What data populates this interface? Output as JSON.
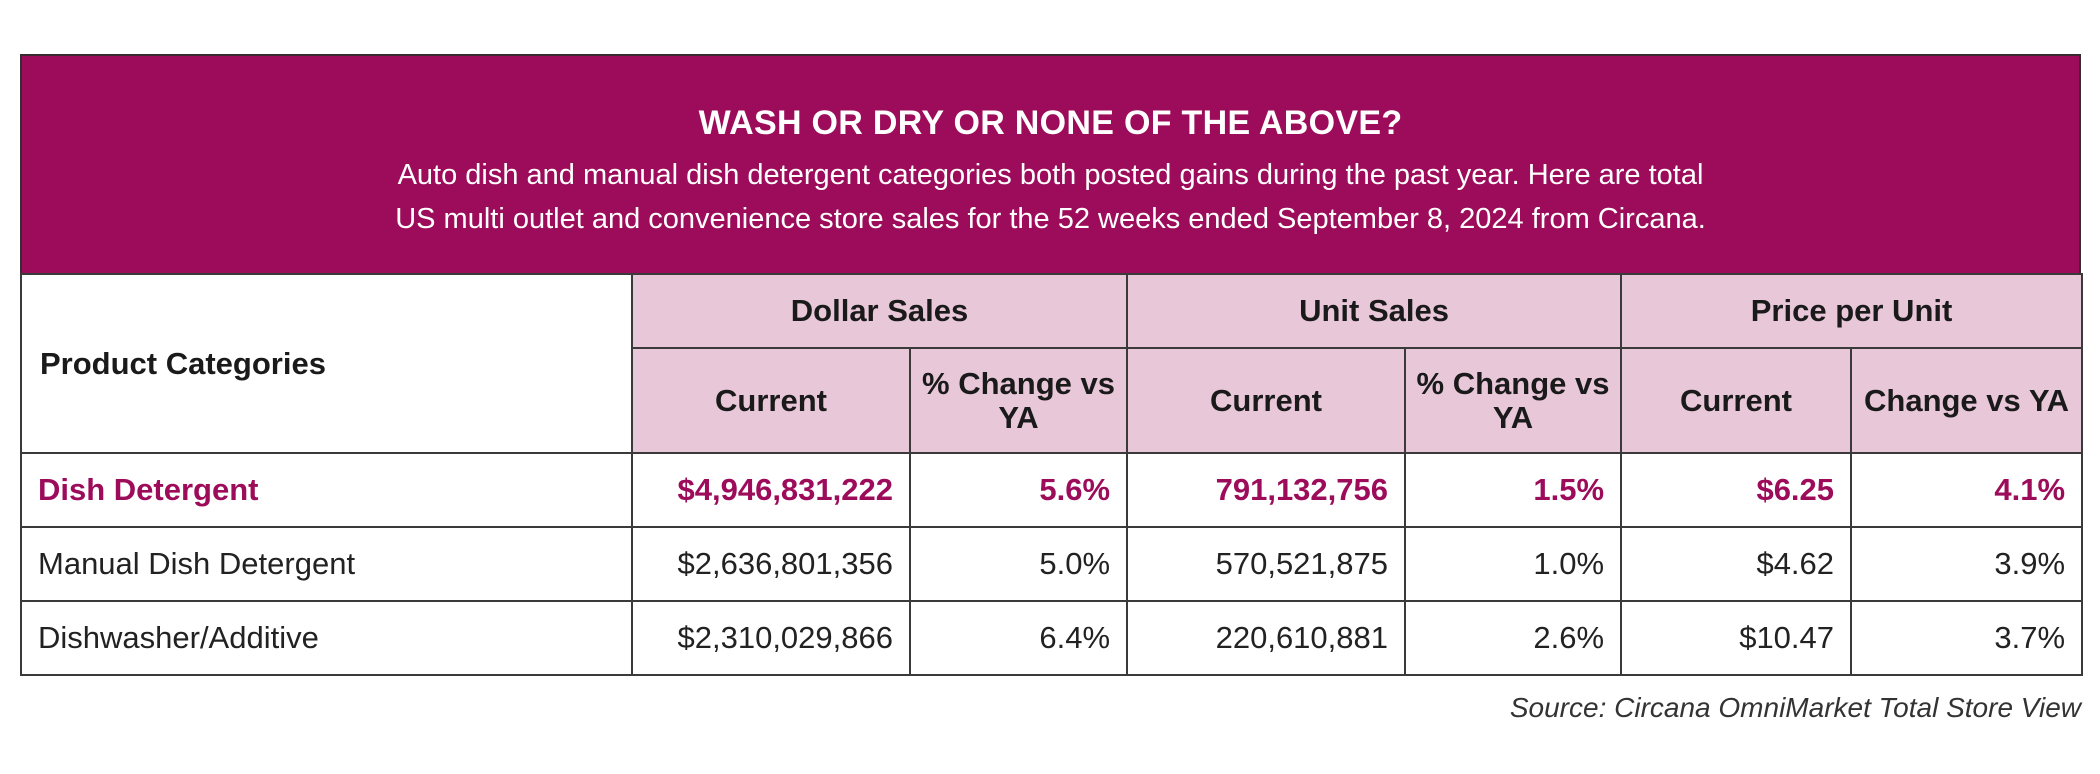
{
  "header": {
    "title": "WASH OR DRY OR NONE OF THE ABOVE?",
    "subtitle_line1": "Auto dish and manual dish detergent categories both posted gains during the past year. Here are total",
    "subtitle_line2": "US multi outlet and convenience store sales for the 52 weeks ended September 8, 2024 from Circana."
  },
  "table": {
    "category_header": "Product Categories",
    "groups": [
      "Dollar Sales",
      "Unit Sales",
      "Price per Unit"
    ],
    "subheaders": [
      "Current",
      "% Change vs YA",
      "Current",
      "% Change vs YA",
      "Current",
      "Change vs YA"
    ],
    "rows": [
      {
        "category": "Dish Detergent",
        "values": [
          "$4,946,831,222",
          "5.6%",
          "791,132,756",
          "1.5%",
          "$6.25",
          "4.1%"
        ],
        "highlight": true
      },
      {
        "category": "Manual Dish Detergent",
        "values": [
          "$2,636,801,356",
          "5.0%",
          "570,521,875",
          "1.0%",
          "$4.62",
          "3.9%"
        ],
        "highlight": false
      },
      {
        "category": "Dishwasher/Additive",
        "values": [
          "$2,310,029,866",
          "6.4%",
          "220,610,881",
          "2.6%",
          "$10.47",
          "3.7%"
        ],
        "highlight": false
      }
    ]
  },
  "source": "Source: Circana OmniMarket Total Store View",
  "colors": {
    "brand": "#9c0c5a",
    "header_cell": "#e8c7d9"
  }
}
